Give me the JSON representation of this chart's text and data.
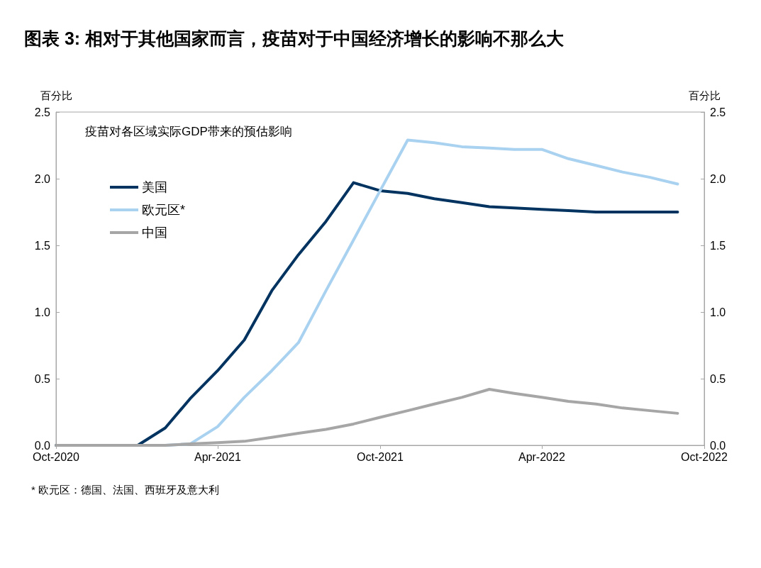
{
  "chart_data": {
    "type": "line",
    "title": "图表 3: 相对于其他国家而言，疫苗对于中国经济增长的影响不那么大",
    "subtitle": "疫苗对各区域实际GDP带来的预估影响",
    "ylabel": "百分比",
    "y2label": "百分比",
    "annotations": [
      "* 欧元区：德国、法国、西班牙及意大利"
    ],
    "x": [
      "2020-10",
      "2020-11",
      "2020-12",
      "2021-01",
      "2021-02",
      "2021-03",
      "2021-04",
      "2021-05",
      "2021-06",
      "2021-07",
      "2021-08",
      "2021-09",
      "2021-10",
      "2021-11",
      "2021-12",
      "2022-01",
      "2022-02",
      "2022-03",
      "2022-04",
      "2022-05",
      "2022-06",
      "2022-07",
      "2022-08",
      "2022-09"
    ],
    "series": [
      {
        "name": "美国",
        "color": "#003360",
        "values": [
          0,
          0,
          0,
          0,
          0.13,
          0.35,
          0.56,
          0.79,
          1.16,
          1.43,
          1.68,
          1.97,
          1.91,
          1.89,
          1.85,
          1.82,
          1.79,
          1.78,
          1.77,
          1.76,
          1.75,
          1.75,
          1.75,
          1.75
        ]
      },
      {
        "name": "欧元区*",
        "color": "#a9d1f0",
        "values": [
          null,
          null,
          0,
          0,
          0,
          0.01,
          0.14,
          0.36,
          0.56,
          0.77,
          1.16,
          1.54,
          1.91,
          2.29,
          2.27,
          2.24,
          2.23,
          2.22,
          2.22,
          2.15,
          2.1,
          2.05,
          2.01,
          1.96
        ]
      },
      {
        "name": "中国",
        "color": "#a6a6a6",
        "values": [
          0,
          0,
          0,
          0,
          0,
          0.01,
          0.02,
          0.03,
          0.06,
          0.09,
          0.12,
          0.16,
          0.21,
          0.26,
          0.31,
          0.36,
          0.42,
          0.39,
          0.36,
          0.33,
          0.31,
          0.28,
          0.26,
          0.24
        ]
      }
    ],
    "xlim": [
      "2020-10",
      "2022-10"
    ],
    "xticks": [
      {
        "value": "2020-10",
        "label": "Oct-2020"
      },
      {
        "value": "2021-04",
        "label": "Apr-2021"
      },
      {
        "value": "2021-10",
        "label": "Oct-2021"
      },
      {
        "value": "2022-04",
        "label": "Apr-2022"
      },
      {
        "value": "2022-10",
        "label": "Oct-2022"
      }
    ],
    "ylim": [
      0,
      2.5
    ],
    "yticks": [
      {
        "value": 0,
        "label": "0.0"
      },
      0.5,
      {
        "value": 1,
        "label": "1.0"
      },
      1.5,
      {
        "value": 2,
        "label": "2.0"
      },
      2.5
    ],
    "y2lim": [
      0,
      2.5
    ],
    "y2ticks": [
      {
        "value": 0,
        "label": "0.0"
      },
      0.5,
      {
        "value": 1,
        "label": "1.0"
      },
      1.5,
      {
        "value": 2,
        "label": "2.0"
      },
      2.5
    ],
    "legend": "top left",
    "grid": false,
    "marker": "none",
    "line_style": "solid"
  }
}
